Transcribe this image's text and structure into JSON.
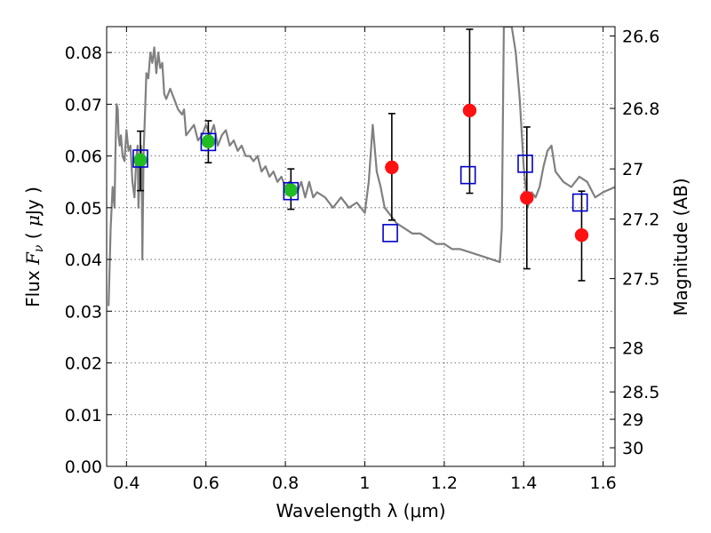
{
  "chart_data": {
    "type": "scatter",
    "title": "",
    "xlabel": "Wavelength  λ (μm)",
    "ylabel_left_parts": [
      "Flux  ",
      "F",
      "ν",
      "  ( ",
      "μ",
      "Jy )"
    ],
    "ylabel_right": "Magnitude (AB)",
    "xlim": [
      0.35,
      1.63
    ],
    "ylim": [
      0.0,
      0.085
    ],
    "grid": true,
    "x_ticks": [
      0.4,
      0.6,
      0.8,
      1.0,
      1.2,
      1.4,
      1.6
    ],
    "x_tick_labels": [
      "0.4",
      "0.6",
      "0.8",
      "1",
      "1.2",
      "1.4",
      "1.6"
    ],
    "y_ticks": [
      0.0,
      0.01,
      0.02,
      0.03,
      0.04,
      0.05,
      0.06,
      0.07,
      0.08
    ],
    "y_tick_labels": [
      "0.00",
      "0.01",
      "0.02",
      "0.03",
      "0.04",
      "0.05",
      "0.06",
      "0.07",
      "0.08"
    ],
    "right_axis_ticks": [
      {
        "label": "26.6",
        "flux": 0.0832
      },
      {
        "label": "26.8",
        "flux": 0.0692
      },
      {
        "label": "27",
        "flux": 0.0575
      },
      {
        "label": "27.2",
        "flux": 0.0478
      },
      {
        "label": "27.5",
        "flux": 0.0363
      },
      {
        "label": "28",
        "flux": 0.0229
      },
      {
        "label": "28.5",
        "flux": 0.0144
      },
      {
        "label": "29",
        "flux": 0.0091
      },
      {
        "label": "30",
        "flux": 0.0036
      }
    ],
    "model_spectrum": {
      "color": "#808080",
      "x": [
        0.355,
        0.36,
        0.365,
        0.37,
        0.372,
        0.375,
        0.378,
        0.38,
        0.383,
        0.386,
        0.39,
        0.395,
        0.4,
        0.405,
        0.41,
        0.415,
        0.42,
        0.425,
        0.428,
        0.43,
        0.433,
        0.436,
        0.438,
        0.44,
        0.443,
        0.445,
        0.45,
        0.455,
        0.46,
        0.465,
        0.47,
        0.475,
        0.48,
        0.485,
        0.49,
        0.495,
        0.5,
        0.505,
        0.51,
        0.52,
        0.53,
        0.54,
        0.545,
        0.55,
        0.56,
        0.57,
        0.58,
        0.59,
        0.6,
        0.61,
        0.62,
        0.63,
        0.64,
        0.65,
        0.66,
        0.67,
        0.68,
        0.69,
        0.7,
        0.71,
        0.72,
        0.73,
        0.74,
        0.75,
        0.76,
        0.77,
        0.78,
        0.79,
        0.8,
        0.81,
        0.82,
        0.83,
        0.84,
        0.85,
        0.86,
        0.87,
        0.88,
        0.9,
        0.92,
        0.94,
        0.96,
        0.98,
        1.0,
        1.01,
        1.02,
        1.03,
        1.04,
        1.05,
        1.06,
        1.07,
        1.08,
        1.1,
        1.12,
        1.14,
        1.16,
        1.18,
        1.2,
        1.22,
        1.24,
        1.26,
        1.28,
        1.3,
        1.32,
        1.34,
        1.345,
        1.35,
        1.355,
        1.36,
        1.37,
        1.38,
        1.39,
        1.4,
        1.41,
        1.42,
        1.43,
        1.44,
        1.45,
        1.46,
        1.47,
        1.48,
        1.5,
        1.52,
        1.54,
        1.56,
        1.58,
        1.6,
        1.63
      ],
      "y": [
        0.031,
        0.046,
        0.054,
        0.05,
        0.06,
        0.07,
        0.069,
        0.064,
        0.062,
        0.064,
        0.06,
        0.059,
        0.065,
        0.061,
        0.062,
        0.055,
        0.052,
        0.06,
        0.062,
        0.05,
        0.057,
        0.062,
        0.06,
        0.04,
        0.061,
        0.065,
        0.076,
        0.075,
        0.08,
        0.078,
        0.081,
        0.076,
        0.08,
        0.077,
        0.078,
        0.072,
        0.071,
        0.072,
        0.073,
        0.071,
        0.069,
        0.068,
        0.069,
        0.064,
        0.065,
        0.066,
        0.063,
        0.064,
        0.066,
        0.064,
        0.066,
        0.062,
        0.064,
        0.065,
        0.062,
        0.063,
        0.061,
        0.062,
        0.06,
        0.06,
        0.059,
        0.06,
        0.057,
        0.058,
        0.056,
        0.057,
        0.055,
        0.056,
        0.054,
        0.055,
        0.054,
        0.053,
        0.055,
        0.052,
        0.055,
        0.052,
        0.053,
        0.052,
        0.05,
        0.052,
        0.05,
        0.051,
        0.049,
        0.055,
        0.066,
        0.057,
        0.054,
        0.05,
        0.049,
        0.048,
        0.047,
        0.046,
        0.045,
        0.045,
        0.044,
        0.043,
        0.043,
        0.042,
        0.042,
        0.0415,
        0.041,
        0.0405,
        0.04,
        0.0395,
        0.046,
        0.085,
        0.085,
        0.085,
        0.085,
        0.08,
        0.071,
        0.058,
        0.05,
        0.053,
        0.052,
        0.054,
        0.058,
        0.061,
        0.062,
        0.057,
        0.055,
        0.054,
        0.056,
        0.055,
        0.052,
        0.053,
        0.054
      ]
    },
    "series": [
      {
        "marker": "circle",
        "color": "#22bb22",
        "points": [
          {
            "x": 0.435,
            "y": 0.0592
          },
          {
            "x": 0.606,
            "y": 0.0628
          },
          {
            "x": 0.814,
            "y": 0.0534
          }
        ],
        "error_bars": [
          {
            "x": 0.435,
            "low": 0.0533,
            "high": 0.0648
          },
          {
            "x": 0.606,
            "low": 0.0587,
            "high": 0.0668
          },
          {
            "x": 0.814,
            "low": 0.0497,
            "high": 0.0575
          }
        ]
      },
      {
        "marker": "circle",
        "color": "#ff1111",
        "points": [
          {
            "x": 1.068,
            "y": 0.0578
          },
          {
            "x": 1.264,
            "y": 0.0688
          },
          {
            "x": 1.408,
            "y": 0.0519
          },
          {
            "x": 1.546,
            "y": 0.0447
          }
        ],
        "error_bars": [
          {
            "x": 1.068,
            "low": 0.0476,
            "high": 0.0682
          },
          {
            "x": 1.264,
            "low": 0.0528,
            "high": 0.0845
          },
          {
            "x": 1.408,
            "low": 0.0382,
            "high": 0.0656
          },
          {
            "x": 1.546,
            "low": 0.0359,
            "high": 0.0532
          }
        ]
      },
      {
        "marker": "square-open",
        "color": "#0000cc",
        "points": [
          {
            "x": 0.435,
            "y": 0.0595
          },
          {
            "x": 0.606,
            "y": 0.0627
          },
          {
            "x": 0.814,
            "y": 0.0532
          },
          {
            "x": 1.064,
            "y": 0.0451
          },
          {
            "x": 1.26,
            "y": 0.0563
          },
          {
            "x": 1.404,
            "y": 0.0585
          },
          {
            "x": 1.542,
            "y": 0.051
          }
        ]
      }
    ]
  }
}
